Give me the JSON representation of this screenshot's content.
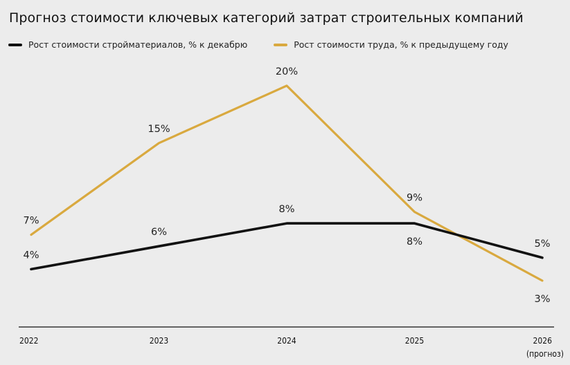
{
  "chart_data": {
    "type": "line",
    "title": "Прогноз стоимости ключевых категорий затрат строительных компаний",
    "xlabel": "",
    "ylabel": "",
    "categories": [
      "2022",
      "2023",
      "2024",
      "2025",
      "2026"
    ],
    "category_sublabels": [
      "",
      "",
      "",
      "",
      "(прогноз)"
    ],
    "ylim": [
      0,
      27
    ],
    "grid": false,
    "legend_position": "top-left",
    "series": [
      {
        "name": "Рост стоимости стройматериалов, % к декабрю",
        "color": "#111111",
        "values": [
          4,
          6,
          8,
          8,
          5
        ],
        "labels": [
          "4%",
          "6%",
          "8%",
          "8%",
          "5%"
        ],
        "label_positions": [
          "above",
          "above",
          "above",
          "below",
          "above"
        ]
      },
      {
        "name": "Рост стоимости труда, % к предыдущему году",
        "color": "#d9a93f",
        "values": [
          7,
          15,
          20,
          9,
          3
        ],
        "labels": [
          "7%",
          "15%",
          "20%",
          "9%",
          "3%"
        ],
        "label_positions": [
          "above",
          "above",
          "above",
          "above",
          "below"
        ]
      }
    ]
  }
}
